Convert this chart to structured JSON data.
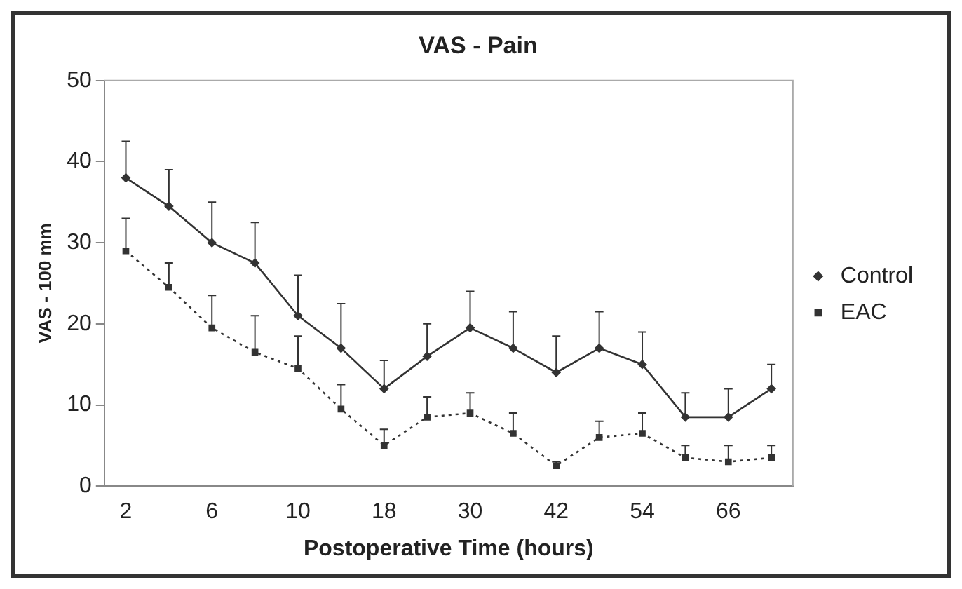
{
  "chart_data": {
    "type": "line",
    "title": "VAS - Pain",
    "xlabel": "Postoperative Time (hours)",
    "ylabel": "VAS - 100 mm",
    "categories": [
      "2",
      null,
      "6",
      null,
      "10",
      null,
      "18",
      null,
      "30",
      null,
      "42",
      null,
      "54",
      null,
      "66",
      null
    ],
    "series": [
      {
        "name": "Control",
        "color": "#333333",
        "marker": "diamond",
        "line_style": "solid",
        "values": [
          38,
          34.5,
          30,
          27.5,
          21,
          17,
          12,
          16,
          19.5,
          17,
          14,
          17,
          15,
          8.5,
          8.5,
          12
        ],
        "errors": [
          [
            38,
            42.5
          ],
          [
            34.5,
            39
          ],
          [
            30,
            35
          ],
          [
            27.5,
            32.5
          ],
          [
            21,
            26
          ],
          [
            17,
            22.5
          ],
          [
            12,
            15.5
          ],
          [
            16,
            20
          ],
          [
            19.5,
            24
          ],
          [
            17,
            21.5
          ],
          [
            14,
            18.5
          ],
          [
            17,
            21.5
          ],
          [
            15,
            19
          ],
          [
            8.5,
            11.5
          ],
          [
            8.5,
            12
          ],
          [
            12,
            15
          ]
        ]
      },
      {
        "name": "EAC",
        "color": "#333333",
        "marker": "square",
        "line_style": "dotted",
        "values": [
          29,
          24.5,
          19.5,
          16.5,
          14.5,
          9.5,
          5,
          8.5,
          9,
          6.5,
          2.5,
          6,
          6.5,
          3.5,
          3,
          3.5
        ],
        "errors": [
          [
            29,
            33
          ],
          [
            24.5,
            27.5
          ],
          [
            19.5,
            23.5
          ],
          [
            16.5,
            21
          ],
          [
            14.5,
            18.5
          ],
          [
            9.5,
            12.5
          ],
          [
            5,
            7
          ],
          [
            8.5,
            11
          ],
          [
            9,
            11.5
          ],
          [
            6.5,
            9
          ],
          [
            2.5,
            3
          ],
          [
            6,
            8
          ],
          [
            6.5,
            9
          ],
          [
            3.5,
            5
          ],
          [
            3,
            5
          ],
          [
            3.5,
            5
          ]
        ]
      }
    ],
    "ylim": [
      0,
      50
    ],
    "yticks": [
      0,
      10,
      20,
      30,
      40,
      50
    ],
    "grid": false,
    "legend": "right"
  }
}
